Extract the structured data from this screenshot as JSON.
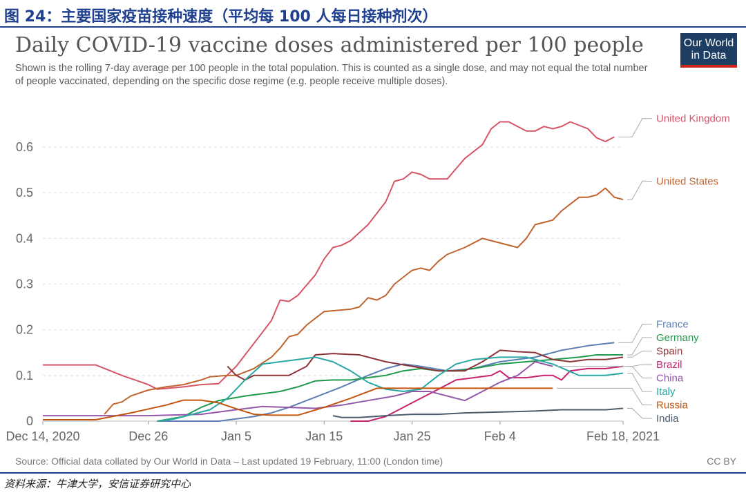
{
  "figure_caption": "图 24：主要国家疫苗接种速度（平均每 100 人每日接种剂次）",
  "source_note": "资料来源：牛津大学，安信证券研究中心",
  "logo": {
    "line1": "Our World",
    "line2": "in Data"
  },
  "footer": {
    "source": "Source: Official data collated by Our World in Data – Last updated 19 February, 11:00 (London time)",
    "license": "CC BY"
  },
  "chart_data": {
    "type": "line",
    "title": "Daily COVID-19 vaccine doses administered per 100 people",
    "subtitle": "Shown is the rolling 7-day average per 100 people in the total population. This is counted as a single dose, and may not equal the total number of people vaccinated, depending on the specific dose regime (e.g. people receive multiple doses).",
    "x_tick_labels": [
      "Dec 14, 2020",
      "Dec 26",
      "Jan 5",
      "Jan 15",
      "Jan 25",
      "Feb 4",
      "Feb 18, 2021"
    ],
    "x_tick_dates": [
      "2020-12-14",
      "2020-12-26",
      "2021-01-05",
      "2021-01-15",
      "2021-01-25",
      "2021-02-04",
      "2021-02-18"
    ],
    "xlim": [
      "2020-12-14",
      "2021-02-18"
    ],
    "y_tick_labels": [
      "0",
      "0.1",
      "0.2",
      "0.3",
      "0.4",
      "0.5",
      "0.6"
    ],
    "ylim": [
      0,
      0.68
    ],
    "grid": "horizontal dashed",
    "legend": "right, end-of-line labels",
    "series": [
      {
        "name": "United Kingdom",
        "color": "#d65466",
        "points": [
          [
            "2020-12-14",
            0.123
          ],
          [
            "2020-12-20",
            0.123
          ],
          [
            "2020-12-23",
            0.1
          ],
          [
            "2020-12-26",
            0.08
          ],
          [
            "2020-12-27",
            0.07
          ],
          [
            "2020-12-30",
            0.075
          ],
          [
            "2021-01-01",
            0.08
          ],
          [
            "2021-01-03",
            0.082
          ],
          [
            "2021-01-05",
            0.12
          ],
          [
            "2021-01-07",
            0.17
          ],
          [
            "2021-01-09",
            0.22
          ],
          [
            "2021-01-10",
            0.265
          ],
          [
            "2021-01-11",
            0.262
          ],
          [
            "2021-01-12",
            0.275
          ],
          [
            "2021-01-14",
            0.32
          ],
          [
            "2021-01-15",
            0.355
          ],
          [
            "2021-01-16",
            0.38
          ],
          [
            "2021-01-17",
            0.385
          ],
          [
            "2021-01-18",
            0.395
          ],
          [
            "2021-01-20",
            0.43
          ],
          [
            "2021-01-22",
            0.48
          ],
          [
            "2021-01-23",
            0.525
          ],
          [
            "2021-01-24",
            0.53
          ],
          [
            "2021-01-25",
            0.545
          ],
          [
            "2021-01-26",
            0.54
          ],
          [
            "2021-01-27",
            0.53
          ],
          [
            "2021-01-29",
            0.53
          ],
          [
            "2021-01-31",
            0.575
          ],
          [
            "2021-02-02",
            0.605
          ],
          [
            "2021-02-03",
            0.64
          ],
          [
            "2021-02-04",
            0.655
          ],
          [
            "2021-02-05",
            0.655
          ],
          [
            "2021-02-07",
            0.635
          ],
          [
            "2021-02-08",
            0.635
          ],
          [
            "2021-02-09",
            0.645
          ],
          [
            "2021-02-10",
            0.64
          ],
          [
            "2021-02-11",
            0.645
          ],
          [
            "2021-02-12",
            0.655
          ],
          [
            "2021-02-14",
            0.64
          ],
          [
            "2021-02-15",
            0.62
          ],
          [
            "2021-02-16",
            0.612
          ],
          [
            "2021-02-17",
            0.622
          ]
        ]
      },
      {
        "name": "United States",
        "color": "#c0632e",
        "points": [
          [
            "2020-12-21",
            0.015
          ],
          [
            "2020-12-22",
            0.037
          ],
          [
            "2020-12-23",
            0.042
          ],
          [
            "2020-12-24",
            0.055
          ],
          [
            "2020-12-26",
            0.068
          ],
          [
            "2020-12-28",
            0.075
          ],
          [
            "2020-12-30",
            0.08
          ],
          [
            "2021-01-01",
            0.09
          ],
          [
            "2021-01-02",
            0.097
          ],
          [
            "2021-01-04",
            0.1
          ],
          [
            "2021-01-05",
            0.1
          ],
          [
            "2021-01-07",
            0.115
          ],
          [
            "2021-01-09",
            0.14
          ],
          [
            "2021-01-10",
            0.16
          ],
          [
            "2021-01-11",
            0.185
          ],
          [
            "2021-01-12",
            0.19
          ],
          [
            "2021-01-13",
            0.21
          ],
          [
            "2021-01-14",
            0.225
          ],
          [
            "2021-01-15",
            0.24
          ],
          [
            "2021-01-18",
            0.245
          ],
          [
            "2021-01-19",
            0.25
          ],
          [
            "2021-01-20",
            0.27
          ],
          [
            "2021-01-21",
            0.265
          ],
          [
            "2021-01-22",
            0.275
          ],
          [
            "2021-01-23",
            0.3
          ],
          [
            "2021-01-25",
            0.33
          ],
          [
            "2021-01-26",
            0.335
          ],
          [
            "2021-01-27",
            0.33
          ],
          [
            "2021-01-28",
            0.35
          ],
          [
            "2021-01-29",
            0.365
          ],
          [
            "2021-01-31",
            0.38
          ],
          [
            "2021-02-02",
            0.4
          ],
          [
            "2021-02-03",
            0.395
          ],
          [
            "2021-02-04",
            0.39
          ],
          [
            "2021-02-06",
            0.38
          ],
          [
            "2021-02-07",
            0.4
          ],
          [
            "2021-02-08",
            0.43
          ],
          [
            "2021-02-09",
            0.435
          ],
          [
            "2021-02-10",
            0.44
          ],
          [
            "2021-02-11",
            0.46
          ],
          [
            "2021-02-13",
            0.49
          ],
          [
            "2021-02-14",
            0.49
          ],
          [
            "2021-02-15",
            0.495
          ],
          [
            "2021-02-16",
            0.51
          ],
          [
            "2021-02-17",
            0.49
          ],
          [
            "2021-02-18",
            0.485
          ]
        ]
      },
      {
        "name": "France",
        "color": "#5b7fb2",
        "points": [
          [
            "2020-12-27",
            0.0
          ],
          [
            "2021-01-01",
            0.0
          ],
          [
            "2021-01-03",
            0.0
          ],
          [
            "2021-01-05",
            0.005
          ],
          [
            "2021-01-07",
            0.01
          ],
          [
            "2021-01-09",
            0.018
          ],
          [
            "2021-01-11",
            0.03
          ],
          [
            "2021-01-13",
            0.045
          ],
          [
            "2021-01-15",
            0.06
          ],
          [
            "2021-01-17",
            0.075
          ],
          [
            "2021-01-20",
            0.1
          ],
          [
            "2021-01-22",
            0.115
          ],
          [
            "2021-01-24",
            0.125
          ],
          [
            "2021-01-26",
            0.12
          ],
          [
            "2021-01-29",
            0.11
          ],
          [
            "2021-02-01",
            0.115
          ],
          [
            "2021-02-04",
            0.13
          ],
          [
            "2021-02-08",
            0.14
          ],
          [
            "2021-02-11",
            0.155
          ],
          [
            "2021-02-14",
            0.165
          ],
          [
            "2021-02-17",
            0.172
          ]
        ]
      },
      {
        "name": "Germany",
        "color": "#1f9a4a",
        "points": [
          [
            "2020-12-27",
            0.0
          ],
          [
            "2020-12-30",
            0.01
          ],
          [
            "2021-01-01",
            0.03
          ],
          [
            "2021-01-03",
            0.045
          ],
          [
            "2021-01-06",
            0.055
          ],
          [
            "2021-01-08",
            0.06
          ],
          [
            "2021-01-10",
            0.065
          ],
          [
            "2021-01-12",
            0.075
          ],
          [
            "2021-01-14",
            0.088
          ],
          [
            "2021-01-16",
            0.09
          ],
          [
            "2021-01-18",
            0.09
          ],
          [
            "2021-01-20",
            0.095
          ],
          [
            "2021-01-22",
            0.1
          ],
          [
            "2021-01-24",
            0.11
          ],
          [
            "2021-01-26",
            0.115
          ],
          [
            "2021-01-28",
            0.11
          ],
          [
            "2021-01-30",
            0.11
          ],
          [
            "2021-02-01",
            0.115
          ],
          [
            "2021-02-04",
            0.125
          ],
          [
            "2021-02-07",
            0.13
          ],
          [
            "2021-02-10",
            0.135
          ],
          [
            "2021-02-13",
            0.14
          ],
          [
            "2021-02-15",
            0.145
          ],
          [
            "2021-02-18",
            0.145
          ]
        ]
      },
      {
        "name": "Spain",
        "color": "#8b3336",
        "points": [
          [
            "2021-01-04",
            0.12
          ],
          [
            "2021-01-05",
            0.1
          ],
          [
            "2021-01-06",
            0.09
          ],
          [
            "2021-01-07",
            0.1
          ],
          [
            "2021-01-09",
            0.1
          ],
          [
            "2021-01-11",
            0.1
          ],
          [
            "2021-01-13",
            0.12
          ],
          [
            "2021-01-14",
            0.145
          ],
          [
            "2021-01-16",
            0.148
          ],
          [
            "2021-01-19",
            0.145
          ],
          [
            "2021-01-22",
            0.13
          ],
          [
            "2021-01-25",
            0.12
          ],
          [
            "2021-01-28",
            0.11
          ],
          [
            "2021-01-31",
            0.11
          ],
          [
            "2021-02-02",
            0.13
          ],
          [
            "2021-02-04",
            0.155
          ],
          [
            "2021-02-06",
            0.152
          ],
          [
            "2021-02-08",
            0.15
          ],
          [
            "2021-02-10",
            0.135
          ],
          [
            "2021-02-12",
            0.13
          ],
          [
            "2021-02-14",
            0.135
          ],
          [
            "2021-02-16",
            0.135
          ],
          [
            "2021-02-18",
            0.14
          ]
        ]
      },
      {
        "name": "Brazil",
        "color": "#c8216e",
        "points": [
          [
            "2021-01-18",
            0.0
          ],
          [
            "2021-01-20",
            0.0
          ],
          [
            "2021-01-22",
            0.01
          ],
          [
            "2021-01-24",
            0.03
          ],
          [
            "2021-01-26",
            0.05
          ],
          [
            "2021-01-28",
            0.07
          ],
          [
            "2021-01-30",
            0.09
          ],
          [
            "2021-02-01",
            0.095
          ],
          [
            "2021-02-03",
            0.1
          ],
          [
            "2021-02-04",
            0.11
          ],
          [
            "2021-02-05",
            0.095
          ],
          [
            "2021-02-07",
            0.095
          ],
          [
            "2021-02-09",
            0.1
          ],
          [
            "2021-02-10",
            0.1
          ],
          [
            "2021-02-11",
            0.09
          ],
          [
            "2021-02-12",
            0.11
          ],
          [
            "2021-02-14",
            0.115
          ],
          [
            "2021-02-16",
            0.115
          ],
          [
            "2021-02-18",
            0.12
          ]
        ]
      },
      {
        "name": "China",
        "color": "#9458a8",
        "points": [
          [
            "2020-12-14",
            0.012
          ],
          [
            "2020-12-20",
            0.012
          ],
          [
            "2020-12-26",
            0.012
          ],
          [
            "2021-01-01",
            0.015
          ],
          [
            "2021-01-05",
            0.025
          ],
          [
            "2021-01-08",
            0.032
          ],
          [
            "2021-01-11",
            0.03
          ],
          [
            "2021-01-14",
            0.028
          ],
          [
            "2021-01-17",
            0.035
          ],
          [
            "2021-01-20",
            0.045
          ],
          [
            "2021-01-23",
            0.055
          ],
          [
            "2021-01-25",
            0.065
          ],
          [
            "2021-01-27",
            0.065
          ],
          [
            "2021-01-29",
            0.055
          ],
          [
            "2021-01-31",
            0.045
          ],
          [
            "2021-02-02",
            0.065
          ],
          [
            "2021-02-04",
            0.085
          ],
          [
            "2021-02-06",
            0.1
          ],
          [
            "2021-02-08",
            0.13
          ],
          [
            "2021-02-10",
            0.12
          ]
        ]
      },
      {
        "name": "Italy",
        "color": "#27a8a3",
        "points": [
          [
            "2020-12-27",
            0.0
          ],
          [
            "2020-12-29",
            0.005
          ],
          [
            "2020-12-31",
            0.015
          ],
          [
            "2021-01-02",
            0.025
          ],
          [
            "2021-01-04",
            0.05
          ],
          [
            "2021-01-06",
            0.09
          ],
          [
            "2021-01-08",
            0.125
          ],
          [
            "2021-01-10",
            0.13
          ],
          [
            "2021-01-12",
            0.135
          ],
          [
            "2021-01-14",
            0.14
          ],
          [
            "2021-01-16",
            0.13
          ],
          [
            "2021-01-18",
            0.11
          ],
          [
            "2021-01-20",
            0.085
          ],
          [
            "2021-01-22",
            0.07
          ],
          [
            "2021-01-24",
            0.065
          ],
          [
            "2021-01-26",
            0.07
          ],
          [
            "2021-01-28",
            0.1
          ],
          [
            "2021-01-30",
            0.125
          ],
          [
            "2021-02-01",
            0.135
          ],
          [
            "2021-02-04",
            0.14
          ],
          [
            "2021-02-07",
            0.14
          ],
          [
            "2021-02-10",
            0.125
          ],
          [
            "2021-02-13",
            0.1
          ],
          [
            "2021-02-16",
            0.1
          ],
          [
            "2021-02-18",
            0.105
          ]
        ]
      },
      {
        "name": "Russia",
        "color": "#c1540f",
        "points": [
          [
            "2020-12-14",
            0.003
          ],
          [
            "2020-12-20",
            0.003
          ],
          [
            "2020-12-24",
            0.018
          ],
          [
            "2020-12-28",
            0.035
          ],
          [
            "2020-12-30",
            0.046
          ],
          [
            "2021-01-01",
            0.046
          ],
          [
            "2021-01-03",
            0.04
          ],
          [
            "2021-01-05",
            0.027
          ],
          [
            "2021-01-07",
            0.015
          ],
          [
            "2021-01-09",
            0.013
          ],
          [
            "2021-01-12",
            0.013
          ],
          [
            "2021-01-15",
            0.03
          ],
          [
            "2021-01-18",
            0.05
          ],
          [
            "2021-01-21",
            0.072
          ],
          [
            "2021-01-24",
            0.072
          ],
          [
            "2021-02-01",
            0.072
          ],
          [
            "2021-02-08",
            0.072
          ],
          [
            "2021-02-10",
            0.072
          ]
        ]
      },
      {
        "name": "India",
        "color": "#4d5b6e",
        "points": [
          [
            "2021-01-16",
            0.012
          ],
          [
            "2021-01-17",
            0.008
          ],
          [
            "2021-01-19",
            0.008
          ],
          [
            "2021-01-22",
            0.012
          ],
          [
            "2021-01-25",
            0.015
          ],
          [
            "2021-01-28",
            0.015
          ],
          [
            "2021-01-31",
            0.018
          ],
          [
            "2021-02-04",
            0.02
          ],
          [
            "2021-02-08",
            0.022
          ],
          [
            "2021-02-11",
            0.025
          ],
          [
            "2021-02-14",
            0.025
          ],
          [
            "2021-02-16",
            0.025
          ],
          [
            "2021-02-18",
            0.028
          ]
        ]
      }
    ]
  }
}
